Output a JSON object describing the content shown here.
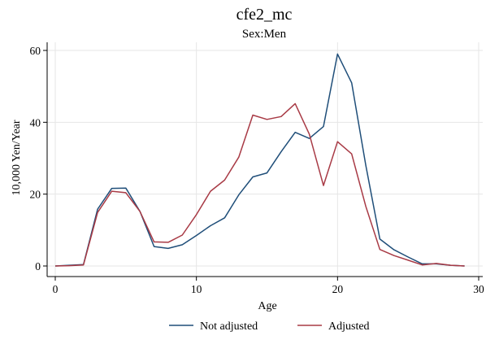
{
  "chart_data": {
    "type": "line",
    "title": "cfe2_mc",
    "subtitle": "Sex:Men",
    "xlabel": "Age",
    "ylabel": "10,000 Yen/Year",
    "xlim": [
      0,
      30
    ],
    "ylim": [
      0,
      60
    ],
    "xticks": [
      0,
      10,
      20,
      30
    ],
    "yticks": [
      0,
      20,
      40,
      60
    ],
    "grid": true,
    "legend_position": "bottom",
    "x": [
      0,
      1,
      2,
      3,
      4,
      5,
      6,
      7,
      8,
      9,
      10,
      11,
      12,
      13,
      14,
      15,
      16,
      17,
      18,
      19,
      20,
      21,
      22,
      23,
      24,
      25,
      26,
      27,
      28,
      29
    ],
    "series": [
      {
        "name": "Not adjusted",
        "color": "#1f4e79",
        "values": [
          0,
          0.2,
          0.4,
          15.8,
          21.6,
          21.7,
          15.2,
          5.4,
          4.9,
          5.9,
          8.5,
          11.2,
          13.4,
          19.8,
          24.8,
          25.9,
          31.8,
          37.2,
          35.5,
          38.8,
          59.0,
          51.0,
          28.0,
          7.5,
          4.5,
          2.5,
          0.6,
          0.6,
          0.2,
          0
        ]
      },
      {
        "name": "Adjusted",
        "color": "#a83a45",
        "values": [
          0,
          0.1,
          0.3,
          14.9,
          20.8,
          20.4,
          15.2,
          6.7,
          6.6,
          8.6,
          14.3,
          20.8,
          23.9,
          30.3,
          42.0,
          40.8,
          41.6,
          45.2,
          36.7,
          22.4,
          34.6,
          31.2,
          16.6,
          4.6,
          2.9,
          1.6,
          0.3,
          0.7,
          0.2,
          0
        ]
      }
    ]
  }
}
